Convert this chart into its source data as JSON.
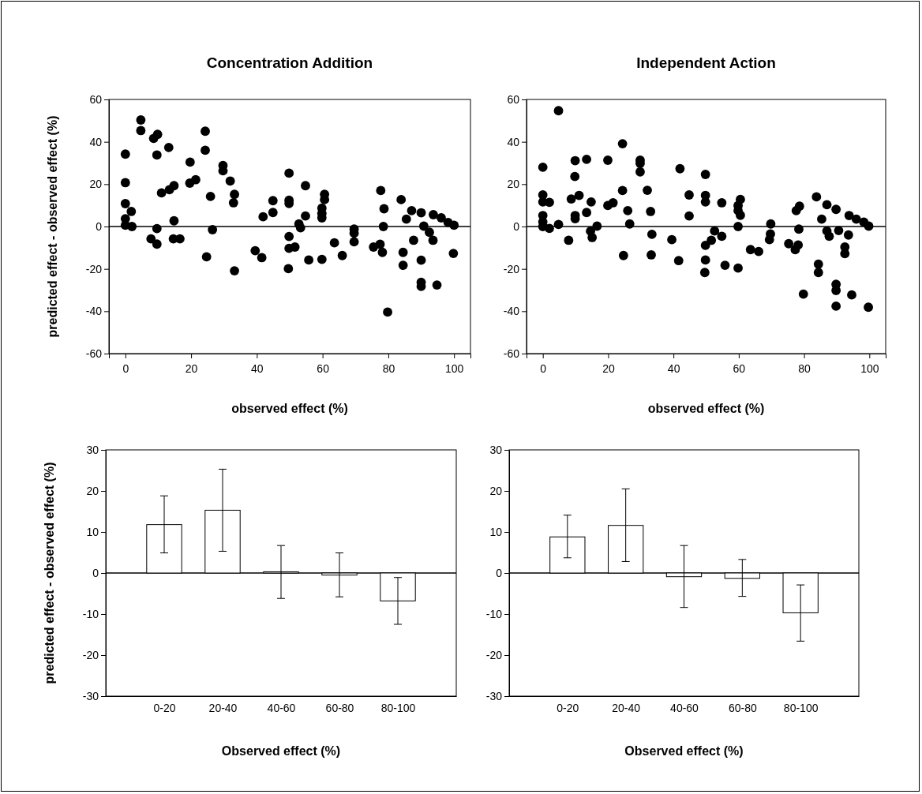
{
  "chart_data": [
    {
      "type": "scatter",
      "title": "Concentration Addition",
      "xlabel": "observed effect (%)",
      "ylabel": "predicted effect - observed effect (%)",
      "marker": "circle",
      "grid": false,
      "xlim": [
        -5,
        105
      ],
      "ylim": [
        -60,
        60
      ],
      "xticks": [
        0,
        20,
        40,
        60,
        80,
        100
      ],
      "yticks": [
        -60,
        -40,
        -20,
        0,
        20,
        40,
        60
      ],
      "ref_lines": [
        {
          "axis": "y",
          "value": 0,
          "color": "#000000"
        }
      ],
      "series": [
        {
          "color": "#000000",
          "x": [
            4.7,
            4.7,
            0,
            0,
            0,
            0,
            0,
            1.8,
            2,
            8.6,
            9.8,
            9.6,
            7.8,
            9.6,
            9.6,
            11,
            13.2,
            13.4,
            14.8,
            14.8,
            14.6,
            16.6,
            19.7,
            19.6,
            21.4,
            24.3,
            24.3,
            24.7,
            25.9,
            26.5,
            29.7,
            29.7,
            31.9,
            33.2,
            32.9,
            33.2,
            39.5,
            41.5,
            41.9,
            44.9,
            44.9,
            49.8,
            49.8,
            49.8,
            49.8,
            49.8,
            51.6,
            49.6,
            52.8,
            53.3,
            54.8,
            54.8,
            55.8,
            59.8,
            59.8,
            59.8,
            59.8,
            60.6,
            60.6,
            63.6,
            66,
            69.6,
            69.6,
            69.6,
            75.5,
            77.5,
            78.2,
            77.7,
            78.7,
            78.5,
            79.8,
            83.9,
            84.5,
            84.5,
            85.5,
            87.1,
            87.7,
            90,
            90,
            90,
            90,
            90.8,
            92.5,
            93.6,
            93.7,
            94.8,
            96.1,
            98.2,
            100,
            99.8
          ],
          "values": [
            50.3,
            45.3,
            34.2,
            20.7,
            10.8,
            3.7,
            0.6,
            7.1,
            0,
            41.6,
            43.5,
            33.8,
            -5.8,
            -8.3,
            -1,
            15.9,
            37.3,
            17.4,
            19.3,
            2.7,
            -5.8,
            -5.8,
            30.4,
            20.5,
            22.1,
            45,
            36,
            -14.3,
            14.2,
            -1.5,
            28.8,
            26.3,
            21.5,
            15.2,
            11.2,
            -20.9,
            -11.4,
            -14.7,
            4.6,
            12.2,
            6.6,
            25.2,
            12.4,
            10.9,
            -4.7,
            -10.3,
            -9.7,
            -19.9,
            1.2,
            -0.6,
            19.3,
            5,
            -15.8,
            -15.5,
            8.7,
            6.2,
            4.1,
            15.2,
            12.7,
            -7.7,
            -13.7,
            -1.2,
            -3.1,
            -7.2,
            -9.7,
            -8.4,
            -12.2,
            17,
            8.4,
            0,
            -40.4,
            12.7,
            -12.2,
            -18.3,
            3.5,
            7.5,
            -6.5,
            6.5,
            -15.9,
            -26.3,
            -28.3,
            0.2,
            -2.7,
            -6.5,
            5.6,
            -27.6,
            4.1,
            1.9,
            0.6,
            -12.7
          ]
        }
      ]
    },
    {
      "type": "scatter",
      "title": "Independent Action",
      "xlabel": "observed effect (%)",
      "marker": "circle",
      "grid": false,
      "xlim": [
        -5,
        105
      ],
      "ylim": [
        -60,
        60
      ],
      "xticks": [
        0,
        20,
        40,
        60,
        80,
        100
      ],
      "yticks": [
        -60,
        -40,
        -20,
        0,
        20,
        40,
        60
      ],
      "ref_lines": [
        {
          "axis": "y",
          "value": 0,
          "color": "#000000"
        }
      ],
      "series": [
        {
          "color": "#000000",
          "x": [
            4.8,
            0,
            0,
            0,
            2,
            0,
            0,
            0,
            2,
            4.8,
            7.9,
            8.7,
            9.9,
            9.8,
            11.1,
            9.9,
            9.9,
            13.4,
            13.4,
            14.8,
            14.6,
            15.1,
            16.6,
            19.9,
            19.9,
            21.5,
            24.4,
            24.4,
            24.7,
            26,
            26.6,
            29.8,
            29.8,
            29.8,
            32,
            33,
            33.4,
            33.2,
            39.5,
            41.6,
            42,
            44.8,
            44.8,
            49.8,
            49.8,
            49.8,
            49.8,
            49.8,
            49.6,
            51.6,
            52.6,
            54.8,
            54.8,
            55.8,
            59.8,
            59.8,
            59.8,
            59.8,
            60.5,
            60.5,
            63.6,
            66.1,
            69.8,
            69.7,
            69.4,
            75.3,
            77.3,
            78.2,
            77.6,
            78.6,
            78.4,
            79.8,
            83.8,
            84.4,
            84.4,
            85.4,
            87,
            87,
            87.7,
            89.8,
            89.8,
            89.8,
            89.8,
            90.6,
            92.5,
            92.5,
            93.6,
            93.8,
            94.6,
            96,
            98.3,
            99.8,
            99.7
          ],
          "values": [
            54.7,
            28,
            14.9,
            11.6,
            11.4,
            5.2,
            2.2,
            0,
            -0.9,
            1,
            -6.5,
            13,
            31.1,
            23.6,
            14.7,
            5.2,
            3.7,
            31.7,
            6.6,
            11.6,
            -2.2,
            -5.2,
            0.2,
            31.3,
            9.9,
            11.2,
            39.1,
            17,
            -13.7,
            7.5,
            1.2,
            31.3,
            29.8,
            25.8,
            17.1,
            7.1,
            -3.7,
            -13.4,
            -6.2,
            -16.1,
            27.3,
            14.9,
            5,
            24.6,
            14.7,
            11.6,
            -8.9,
            -15.8,
            -21.7,
            -6.5,
            -2.1,
            -4.6,
            11.2,
            -18.3,
            -19.6,
            0,
            9.9,
            7.5,
            12.8,
            5.3,
            -10.9,
            -11.8,
            1.2,
            -3.5,
            -6.2,
            -8.1,
            -10.9,
            -8.7,
            7.5,
            9.6,
            -1.2,
            -31.9,
            14,
            -17.8,
            -21.7,
            3.5,
            10.3,
            -2.1,
            -4.6,
            8.1,
            -27.3,
            -30.2,
            -37.6,
            -1.9,
            -9.7,
            -12.8,
            -4,
            5.2,
            -32.3,
            3.5,
            2.1,
            0.2,
            -38.1
          ]
        }
      ]
    },
    {
      "type": "bar",
      "xlabel": "Observed effect (%)",
      "ylabel": "predicted effect - observed effect (%)",
      "grid": false,
      "categories": [
        "0-20",
        "20-40",
        "40-60",
        "60-80",
        "80-100"
      ],
      "ylim": [
        -30,
        30
      ],
      "yticks": [
        -30,
        -20,
        -10,
        0,
        10,
        20,
        30
      ],
      "ref_lines": [
        {
          "axis": "y",
          "value": 0,
          "color": "#000000"
        }
      ],
      "series": [
        {
          "color": "#ffffff",
          "values": [
            11.8,
            15.3,
            0.3,
            -0.5,
            -6.8
          ],
          "errors": [
            [
              4.9,
              18.8
            ],
            [
              5.3,
              25.3
            ],
            [
              -6.2,
              6.7
            ],
            [
              -5.8,
              4.9
            ],
            [
              -12.5,
              -1.1
            ]
          ]
        }
      ]
    },
    {
      "type": "bar",
      "xlabel": "Observed effect (%)",
      "grid": false,
      "categories": [
        "0-20",
        "20-40",
        "40-60",
        "60-80",
        "80-100"
      ],
      "ylim": [
        -30,
        30
      ],
      "yticks": [
        -30,
        -20,
        -10,
        0,
        10,
        20,
        30
      ],
      "ref_lines": [
        {
          "axis": "y",
          "value": 0,
          "color": "#000000"
        }
      ],
      "series": [
        {
          "color": "#ffffff",
          "values": [
            8.8,
            11.6,
            -0.9,
            -1.3,
            -9.7
          ],
          "errors": [
            [
              3.7,
              14.1
            ],
            [
              2.8,
              20.5
            ],
            [
              -8.4,
              6.7
            ],
            [
              -5.7,
              3.3
            ],
            [
              -16.6,
              -2.9
            ]
          ]
        }
      ]
    }
  ]
}
